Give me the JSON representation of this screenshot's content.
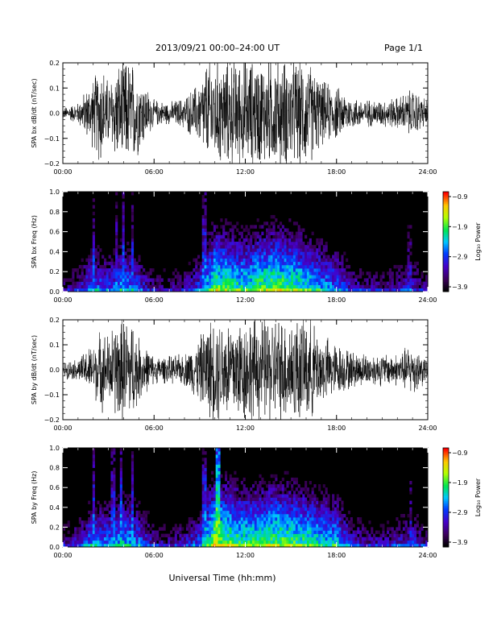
{
  "header": {
    "title": "2013/09/21   00:00–24:00 UT",
    "page": "Page 1/1"
  },
  "xlabel": "Universal Time (hh:mm)",
  "chart_data": [
    {
      "type": "line",
      "ylabel": "SPA bx dB/dt (nT/sec)",
      "xlim": [
        "00:00",
        "24:00"
      ],
      "xticks": [
        "00:00",
        "06:00",
        "12:00",
        "18:00",
        "24:00"
      ],
      "ylim": [
        -0.2,
        0.2
      ],
      "yticks": [
        "−0.2",
        "−0.1",
        "0.0",
        "0.1",
        "0.2"
      ],
      "x_hours": [
        0,
        1,
        2,
        2.5,
        3,
        3.5,
        4,
        4.5,
        5,
        6,
        7,
        8,
        9,
        9.5,
        10,
        10.5,
        11,
        12,
        13,
        14,
        15,
        15.5,
        16,
        16.5,
        17,
        18,
        19,
        20,
        21,
        22,
        23,
        24
      ],
      "envelope": [
        0.02,
        0.04,
        0.13,
        0.2,
        0.12,
        0.18,
        0.2,
        0.2,
        0.15,
        0.05,
        0.04,
        0.06,
        0.12,
        0.2,
        0.2,
        0.2,
        0.2,
        0.2,
        0.2,
        0.2,
        0.2,
        0.2,
        0.2,
        0.17,
        0.12,
        0.1,
        0.06,
        0.05,
        0.05,
        0.06,
        0.09,
        0.05
      ]
    },
    {
      "type": "heatmap",
      "ylabel": "SPA bx Freq (Hz)",
      "xlim": [
        "00:00",
        "24:00"
      ],
      "xticks": [
        "00:00",
        "06:00",
        "12:00",
        "18:00",
        "24:00"
      ],
      "ylim": [
        0,
        1.0
      ],
      "yticks": [
        "0.0",
        "0.2",
        "0.4",
        "0.6",
        "0.8",
        "1.0"
      ],
      "colorbar": {
        "label": "Log₁₀ Power",
        "range": [
          -3.9,
          -0.9
        ],
        "ticks": [
          "−0.9",
          "−1.9",
          "−2.9",
          "−3.9"
        ]
      },
      "x_hours": [
        0,
        1,
        2,
        3,
        4,
        5,
        6,
        7,
        8,
        9,
        10,
        11,
        12,
        13,
        14,
        15,
        16,
        17,
        18,
        19,
        20,
        21,
        22,
        23,
        24
      ],
      "low_freq_log_power": [
        -3.4,
        -3.2,
        -2.6,
        -2.8,
        -2.4,
        -2.8,
        -3.3,
        -3.4,
        -3.2,
        -2.8,
        -1.8,
        -2.0,
        -2.1,
        -1.9,
        -1.8,
        -1.9,
        -2.1,
        -2.4,
        -2.6,
        -3.1,
        -3.3,
        -3.3,
        -3.2,
        -3.0,
        -3.4
      ],
      "vertical_streaks_hours": [
        2.0,
        3.5,
        4.0,
        4.6,
        9.3,
        22.8
      ]
    },
    {
      "type": "line",
      "ylabel": "SPA by dB/dt (nT/sec)",
      "xlim": [
        "00:00",
        "24:00"
      ],
      "xticks": [
        "00:00",
        "06:00",
        "12:00",
        "18:00",
        "24:00"
      ],
      "ylim": [
        -0.2,
        0.2
      ],
      "yticks": [
        "−0.2",
        "−0.1",
        "0.0",
        "0.1",
        "0.2"
      ],
      "x_hours": [
        0,
        1,
        2,
        2.5,
        3,
        3.5,
        4,
        4.5,
        5,
        6,
        7,
        8,
        9,
        9.5,
        10,
        10.5,
        11,
        12,
        13,
        14,
        15,
        15.5,
        16,
        16.5,
        17,
        18,
        19,
        20,
        21,
        22,
        23,
        24
      ],
      "envelope": [
        0.03,
        0.04,
        0.1,
        0.15,
        0.13,
        0.19,
        0.2,
        0.2,
        0.12,
        0.05,
        0.05,
        0.06,
        0.12,
        0.18,
        0.2,
        0.2,
        0.2,
        0.2,
        0.2,
        0.2,
        0.2,
        0.2,
        0.2,
        0.17,
        0.13,
        0.1,
        0.07,
        0.06,
        0.06,
        0.06,
        0.1,
        0.04
      ]
    },
    {
      "type": "heatmap",
      "ylabel": "SPA by Freq (Hz)",
      "xlim": [
        "00:00",
        "24:00"
      ],
      "xticks": [
        "00:00",
        "06:00",
        "12:00",
        "18:00",
        "24:00"
      ],
      "ylim": [
        0,
        1.0
      ],
      "yticks": [
        "0.0",
        "0.2",
        "0.4",
        "0.6",
        "0.8",
        "1.0"
      ],
      "colorbar": {
        "label": "Log₁₀ Power",
        "range": [
          -3.9,
          -0.9
        ],
        "ticks": [
          "−0.9",
          "−1.9",
          "−2.9",
          "−3.9"
        ]
      },
      "x_hours": [
        0,
        1,
        2,
        3,
        4,
        5,
        6,
        7,
        8,
        9,
        10,
        11,
        12,
        13,
        14,
        15,
        16,
        17,
        18,
        19,
        20,
        21,
        22,
        23,
        24
      ],
      "low_freq_log_power": [
        -3.3,
        -3.1,
        -2.5,
        -2.6,
        -2.3,
        -2.6,
        -3.2,
        -3.3,
        -3.1,
        -2.7,
        -1.6,
        -1.8,
        -2.0,
        -1.9,
        -1.8,
        -1.9,
        -2.0,
        -2.2,
        -2.3,
        -3.0,
        -3.2,
        -3.2,
        -3.1,
        -2.9,
        -3.3
      ],
      "vertical_streaks_hours": [
        2.0,
        3.3,
        3.8,
        4.6,
        9.3,
        10.2,
        22.9
      ]
    }
  ]
}
